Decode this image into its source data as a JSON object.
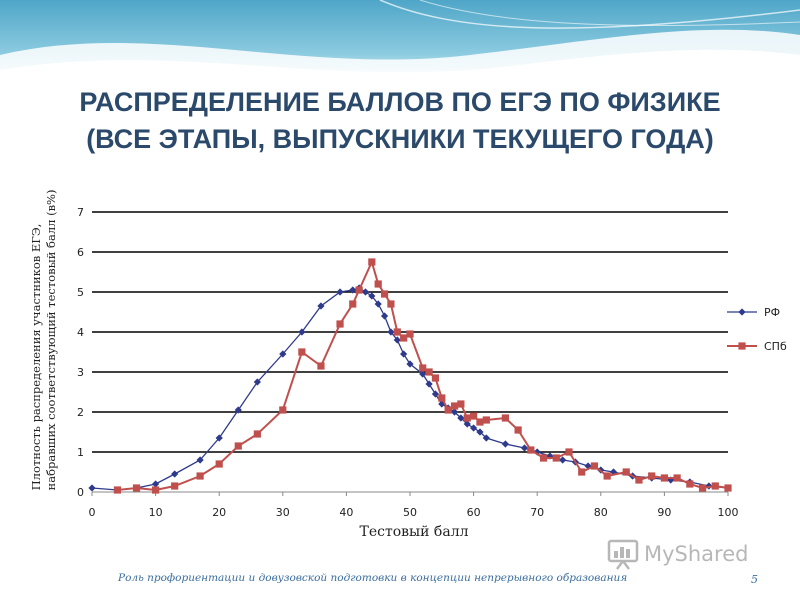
{
  "slide": {
    "title_line1": "РАСПРЕДЕЛЕНИЕ БАЛЛОВ ПО ЕГЭ ПО ФИЗИКЕ",
    "title_line2": "(ВСЕ ЭТАПЫ, ВЫПУСКНИКИ ТЕКУЩЕГО ГОДА)",
    "footer": "Роль профориентации и довузовской подготовки в концепции непрерывного образования",
    "page_number": "5",
    "watermark": "MyShared"
  },
  "colors": {
    "title": "#2b4a6b",
    "series_rf": "#2e3a8c",
    "series_spb": "#c0504d",
    "footer": "#3a6d9e"
  },
  "chart_data": {
    "type": "line",
    "title": "",
    "xlabel": "Тестовый балл",
    "ylabel_line1": "Плотность распределения участников ЕГЭ,",
    "ylabel_line2": "набравших соответствующий тестовый балл (в%)",
    "xlim": [
      0,
      100
    ],
    "ylim": [
      0,
      7
    ],
    "x_ticks": [
      "0",
      "10",
      "20",
      "30",
      "40",
      "50",
      "60",
      "70",
      "80",
      "90",
      "100"
    ],
    "y_ticks": [
      "0",
      "1",
      "2",
      "3",
      "4",
      "5",
      "6",
      "7"
    ],
    "grid": "horizontal",
    "legend_position": "right",
    "series": [
      {
        "name": "РФ",
        "marker": "diamond",
        "points": [
          [
            0,
            0.1
          ],
          [
            4,
            0.05
          ],
          [
            7,
            0.1
          ],
          [
            10,
            0.2
          ],
          [
            13,
            0.45
          ],
          [
            17,
            0.8
          ],
          [
            20,
            1.35
          ],
          [
            23,
            2.05
          ],
          [
            26,
            2.75
          ],
          [
            30,
            3.45
          ],
          [
            33,
            4.0
          ],
          [
            36,
            4.65
          ],
          [
            39,
            5.0
          ],
          [
            41,
            5.05
          ],
          [
            42,
            5.1
          ],
          [
            43,
            5.0
          ],
          [
            44,
            4.9
          ],
          [
            45,
            4.7
          ],
          [
            46,
            4.4
          ],
          [
            47,
            4.0
          ],
          [
            48,
            3.8
          ],
          [
            49,
            3.45
          ],
          [
            50,
            3.2
          ],
          [
            52,
            2.95
          ],
          [
            53,
            2.7
          ],
          [
            54,
            2.45
          ],
          [
            55,
            2.2
          ],
          [
            56,
            2.1
          ],
          [
            57,
            2.0
          ],
          [
            58,
            1.85
          ],
          [
            59,
            1.7
          ],
          [
            60,
            1.6
          ],
          [
            61,
            1.5
          ],
          [
            62,
            1.35
          ],
          [
            65,
            1.2
          ],
          [
            68,
            1.1
          ],
          [
            70,
            1.0
          ],
          [
            72,
            0.9
          ],
          [
            74,
            0.8
          ],
          [
            76,
            0.75
          ],
          [
            78,
            0.65
          ],
          [
            80,
            0.55
          ],
          [
            82,
            0.5
          ],
          [
            85,
            0.4
          ],
          [
            88,
            0.35
          ],
          [
            91,
            0.3
          ],
          [
            94,
            0.25
          ],
          [
            97,
            0.15
          ],
          [
            100,
            0.1
          ]
        ]
      },
      {
        "name": "СПб",
        "marker": "square",
        "points": [
          [
            4,
            0.05
          ],
          [
            7,
            0.1
          ],
          [
            10,
            0.05
          ],
          [
            13,
            0.15
          ],
          [
            17,
            0.4
          ],
          [
            20,
            0.7
          ],
          [
            23,
            1.15
          ],
          [
            26,
            1.45
          ],
          [
            30,
            2.05
          ],
          [
            33,
            3.5
          ],
          [
            36,
            3.15
          ],
          [
            39,
            4.2
          ],
          [
            41,
            4.7
          ],
          [
            42,
            5.05
          ],
          [
            44,
            5.75
          ],
          [
            45,
            5.2
          ],
          [
            46,
            4.95
          ],
          [
            47,
            4.7
          ],
          [
            48,
            4.0
          ],
          [
            49,
            3.85
          ],
          [
            50,
            3.95
          ],
          [
            52,
            3.1
          ],
          [
            53,
            3.0
          ],
          [
            54,
            2.85
          ],
          [
            55,
            2.35
          ],
          [
            56,
            2.05
          ],
          [
            57,
            2.15
          ],
          [
            58,
            2.2
          ],
          [
            59,
            1.85
          ],
          [
            60,
            1.9
          ],
          [
            61,
            1.75
          ],
          [
            62,
            1.8
          ],
          [
            65,
            1.85
          ],
          [
            67,
            1.55
          ],
          [
            69,
            1.05
          ],
          [
            71,
            0.85
          ],
          [
            73,
            0.85
          ],
          [
            75,
            1.0
          ],
          [
            77,
            0.5
          ],
          [
            79,
            0.65
          ],
          [
            81,
            0.4
          ],
          [
            84,
            0.5
          ],
          [
            86,
            0.3
          ],
          [
            88,
            0.4
          ],
          [
            90,
            0.35
          ],
          [
            92,
            0.35
          ],
          [
            94,
            0.2
          ],
          [
            96,
            0.1
          ],
          [
            98,
            0.15
          ],
          [
            100,
            0.1
          ]
        ]
      }
    ]
  }
}
